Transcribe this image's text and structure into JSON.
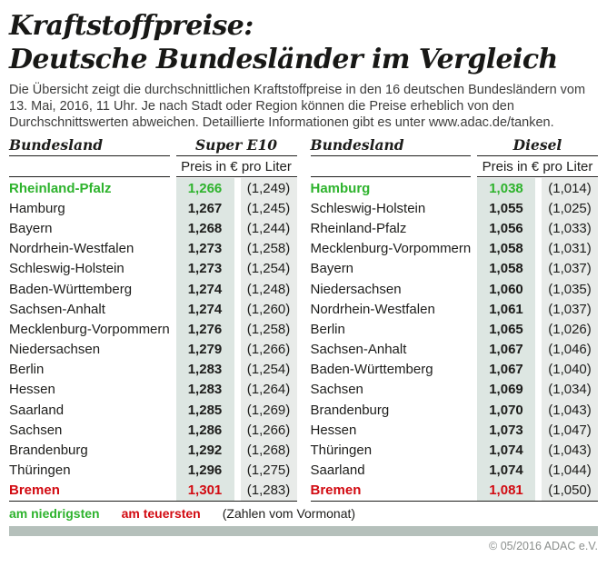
{
  "page": {
    "title_line1": "Kraftstoffpreise:",
    "title_line2": "Deutsche Bundesländer im Vergleich",
    "intro": "Die Übersicht zeigt die durchschnittlichen Kraftstoffpreise in den 16 deutschen Bundesländern vom 13. Mai, 2016, 11 Uhr. Je nach Stadt oder Region können die Preise erheblich von den Durchschnittswerten abweichen. Detaillierte Informationen gibt es unter www.adac.de/tanken."
  },
  "legend": {
    "lowest_label": "am niedrigsten",
    "highest_label": "am teuersten",
    "note": "(Zahlen vom Vormonat)"
  },
  "footer": {
    "copyright": "© 05/2016 ADAC e.V."
  },
  "colors": {
    "lowest_green": "#2eb32d",
    "highest_red": "#d20a11",
    "current_price_column_bg": "#dde6e2",
    "previous_price_column_bg": "#e8ebe9",
    "footer_bar": "#b5c0bb",
    "text": "#1d1d1b"
  },
  "chart_data": [
    {
      "type": "table",
      "title": "Super E10",
      "state_header": "Bundesland",
      "unit_label": "Preis in € pro Liter",
      "value_note": "previous month value shown in parentheses",
      "rows": [
        {
          "state": "Rheinland-Pfalz",
          "price": 1.266,
          "previous": 1.249,
          "highlight": "lowest"
        },
        {
          "state": "Hamburg",
          "price": 1.267,
          "previous": 1.245
        },
        {
          "state": "Bayern",
          "price": 1.268,
          "previous": 1.244
        },
        {
          "state": "Nordrhein-Westfalen",
          "price": 1.273,
          "previous": 1.258
        },
        {
          "state": "Schleswig-Holstein",
          "price": 1.273,
          "previous": 1.254
        },
        {
          "state": "Baden-Württemberg",
          "price": 1.274,
          "previous": 1.248
        },
        {
          "state": "Sachsen-Anhalt",
          "price": 1.274,
          "previous": 1.26
        },
        {
          "state": "Mecklenburg-Vorpommern",
          "price": 1.276,
          "previous": 1.258
        },
        {
          "state": "Niedersachsen",
          "price": 1.279,
          "previous": 1.266
        },
        {
          "state": "Berlin",
          "price": 1.283,
          "previous": 1.254
        },
        {
          "state": "Hessen",
          "price": 1.283,
          "previous": 1.264
        },
        {
          "state": "Saarland",
          "price": 1.285,
          "previous": 1.269
        },
        {
          "state": "Sachsen",
          "price": 1.286,
          "previous": 1.266
        },
        {
          "state": "Brandenburg",
          "price": 1.292,
          "previous": 1.268
        },
        {
          "state": "Thüringen",
          "price": 1.296,
          "previous": 1.275
        },
        {
          "state": "Bremen",
          "price": 1.301,
          "previous": 1.283,
          "highlight": "highest"
        }
      ]
    },
    {
      "type": "table",
      "title": "Diesel",
      "state_header": "Bundesland",
      "unit_label": "Preis in € pro Liter",
      "value_note": "previous month value shown in parentheses",
      "rows": [
        {
          "state": "Hamburg",
          "price": 1.038,
          "previous": 1.014,
          "highlight": "lowest"
        },
        {
          "state": "Schleswig-Holstein",
          "price": 1.055,
          "previous": 1.025
        },
        {
          "state": "Rheinland-Pfalz",
          "price": 1.056,
          "previous": 1.033
        },
        {
          "state": "Mecklenburg-Vorpommern",
          "price": 1.058,
          "previous": 1.031
        },
        {
          "state": "Bayern",
          "price": 1.058,
          "previous": 1.037
        },
        {
          "state": "Niedersachsen",
          "price": 1.06,
          "previous": 1.035
        },
        {
          "state": "Nordrhein-Westfalen",
          "price": 1.061,
          "previous": 1.037
        },
        {
          "state": "Berlin",
          "price": 1.065,
          "previous": 1.026
        },
        {
          "state": "Sachsen-Anhalt",
          "price": 1.067,
          "previous": 1.046
        },
        {
          "state": "Baden-Württemberg",
          "price": 1.067,
          "previous": 1.04
        },
        {
          "state": "Sachsen",
          "price": 1.069,
          "previous": 1.034
        },
        {
          "state": "Brandenburg",
          "price": 1.07,
          "previous": 1.043
        },
        {
          "state": "Hessen",
          "price": 1.073,
          "previous": 1.047
        },
        {
          "state": "Thüringen",
          "price": 1.074,
          "previous": 1.043
        },
        {
          "state": "Saarland",
          "price": 1.074,
          "previous": 1.044
        },
        {
          "state": "Bremen",
          "price": 1.081,
          "previous": 1.05,
          "highlight": "highest"
        }
      ]
    }
  ]
}
